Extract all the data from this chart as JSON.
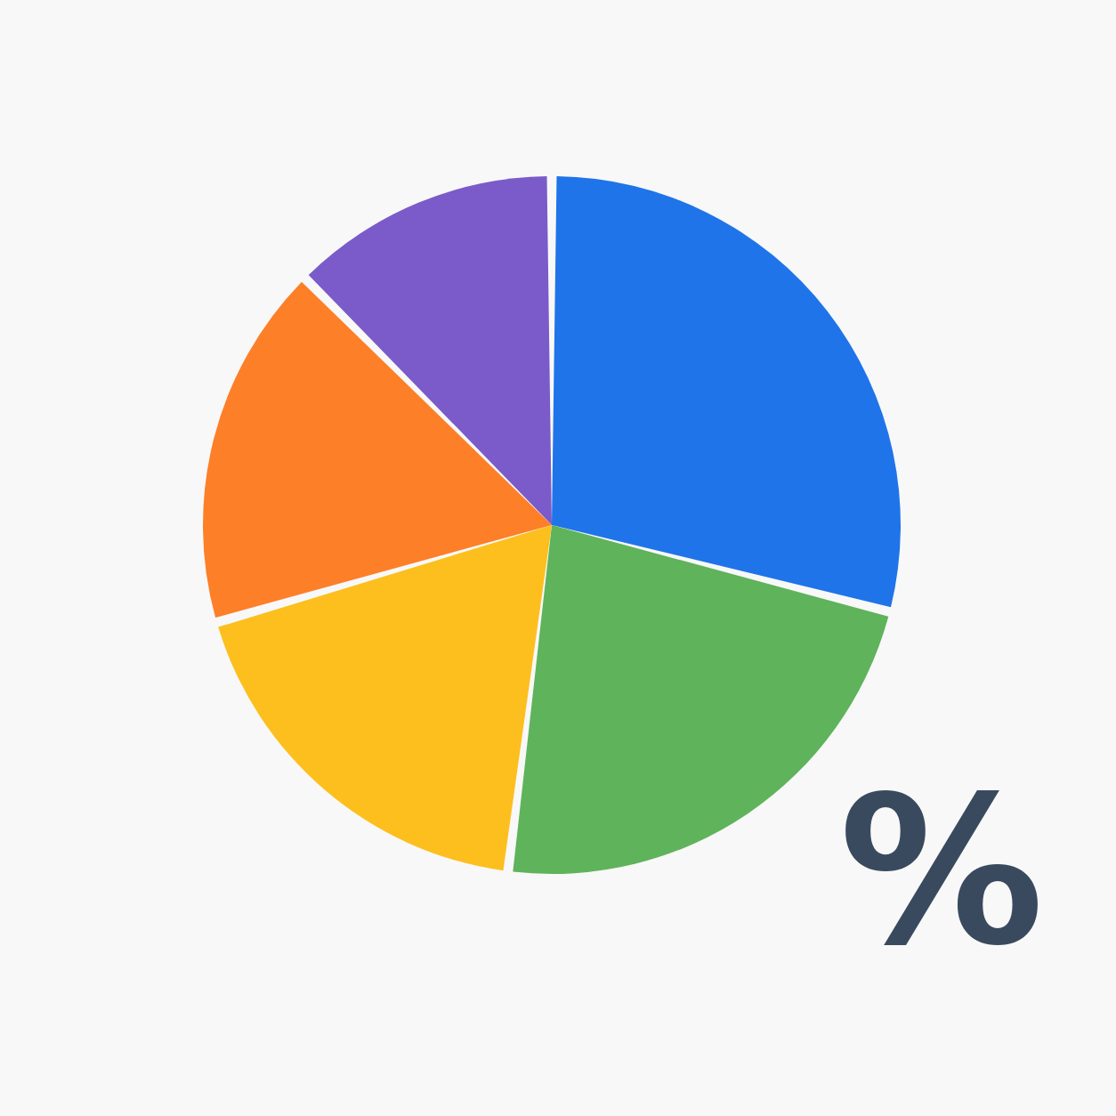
{
  "chart_data": {
    "type": "pie",
    "categories": [
      null,
      null,
      null,
      null,
      null
    ],
    "values": [
      29,
      23,
      18.5,
      17,
      12.5
    ],
    "colors": [
      "#1f74e9",
      "#5fb35b",
      "#fcbf1e",
      "#fd7f28",
      "#7a5bc9"
    ],
    "annotations": [
      "%"
    ]
  }
}
